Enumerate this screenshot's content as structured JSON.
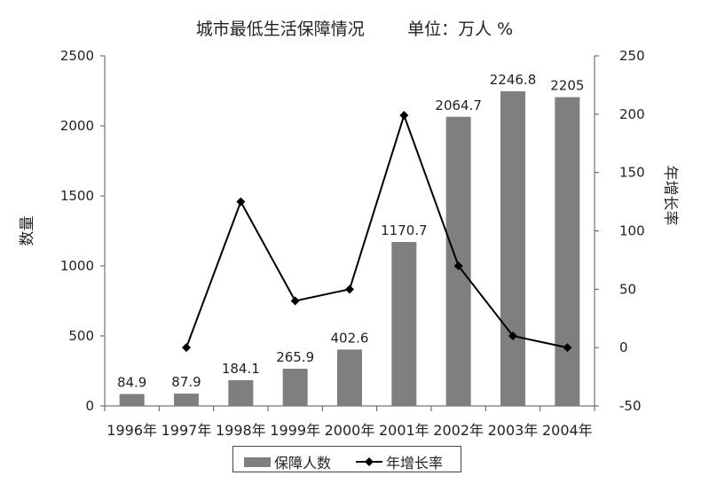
{
  "title": "城市最低生活保障情况        单位：万人 %",
  "legend": {
    "bar_label": "保障人数",
    "line_label": "年增长率"
  },
  "colors": {
    "bar": "#7f7f7f",
    "line": "#000000",
    "axis": "#555555"
  },
  "chart_data": {
    "type": "bar",
    "title": "城市最低生活保障情况        单位：万人 %",
    "categories": [
      "1996年",
      "1997年",
      "1998年",
      "1999年",
      "2000年",
      "2001年",
      "2002年",
      "2003年",
      "2004年"
    ],
    "ylabel": "数量",
    "y2label": "年增长率",
    "ylim": [
      0,
      2500
    ],
    "yticks": [
      0,
      500,
      1000,
      1500,
      2000,
      2500
    ],
    "y2lim": [
      -50,
      250
    ],
    "y2ticks": [
      -50,
      0,
      50,
      100,
      150,
      200,
      250
    ],
    "series": [
      {
        "name": "保障人数",
        "type": "bar",
        "axis": "left",
        "values": [
          84.9,
          87.9,
          184.1,
          265.9,
          402.6,
          1170.7,
          2064.7,
          2246.8,
          2205
        ],
        "labels": [
          "84.9",
          "87.9",
          "184.1",
          "265.9",
          "402.6",
          "1170.7",
          "2064.7",
          "2246.8",
          "2205"
        ]
      },
      {
        "name": "年增长率",
        "type": "line",
        "axis": "right",
        "values": [
          null,
          0,
          125,
          40,
          50,
          199,
          70,
          10,
          0
        ]
      }
    ],
    "grid": false,
    "legend_position": "bottom"
  }
}
